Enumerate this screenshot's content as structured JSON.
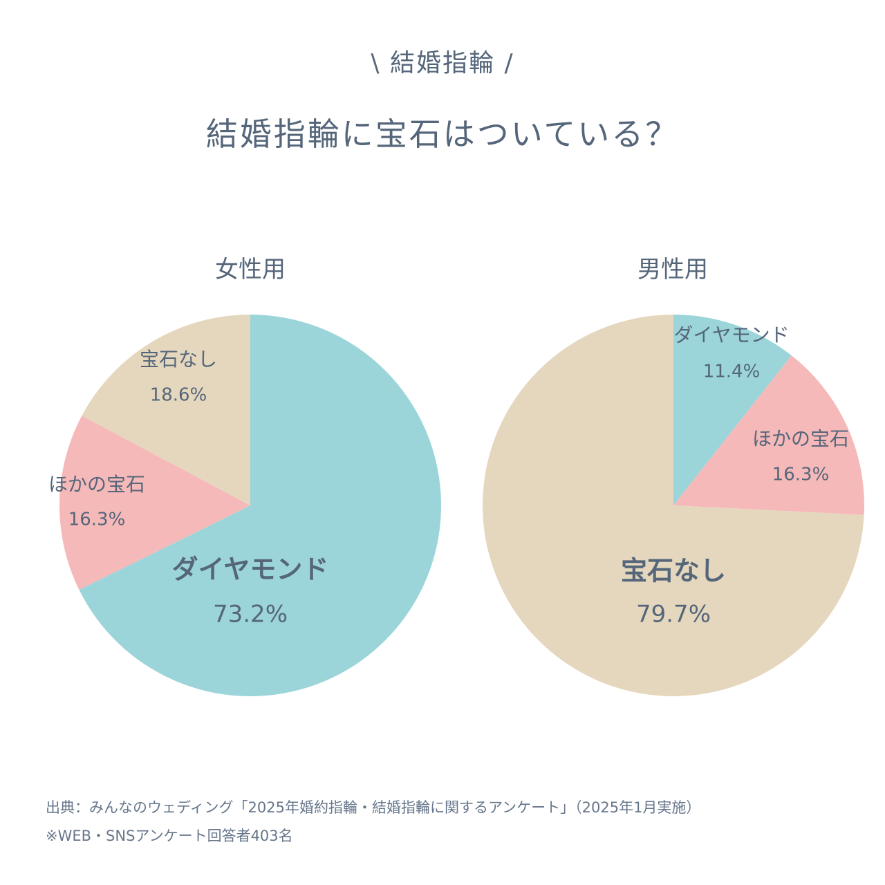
{
  "header": {
    "subtitle": "\\ 結婚指輪 /",
    "title": "結婚指輪に宝石はついている？"
  },
  "colors": {
    "diamond": "#9bd5d9",
    "other_gem": "#f6b9b9",
    "no_gem": "#e5d7bd",
    "text": "#55667a"
  },
  "chart_data": [
    {
      "type": "pie",
      "title": "女性用",
      "slices": [
        {
          "label": "ダイヤモンド",
          "value": 73.2,
          "value_text": "73.2%",
          "color": "#9bd5d9"
        },
        {
          "label": "ほかの宝石",
          "value": 16.3,
          "value_text": "16.3%",
          "color": "#f6b9b9"
        },
        {
          "label": "宝石なし",
          "value": 18.6,
          "value_text": "18.6%",
          "color": "#e5d7bd"
        }
      ]
    },
    {
      "type": "pie",
      "title": "男性用",
      "slices": [
        {
          "label": "ダイヤモンド",
          "value": 11.4,
          "value_text": "11.4%",
          "color": "#9bd5d9"
        },
        {
          "label": "ほかの宝石",
          "value": 16.3,
          "value_text": "16.3%",
          "color": "#f6b9b9"
        },
        {
          "label": "宝石なし",
          "value": 79.7,
          "value_text": "79.7%",
          "color": "#e5d7bd"
        }
      ]
    }
  ],
  "footer": {
    "source": "出典：みんなのウェディング「2025年婚約指輪・結婚指輪に関するアンケート」（2025年1月実施）",
    "note": "※WEB・SNSアンケート回答者403名"
  }
}
